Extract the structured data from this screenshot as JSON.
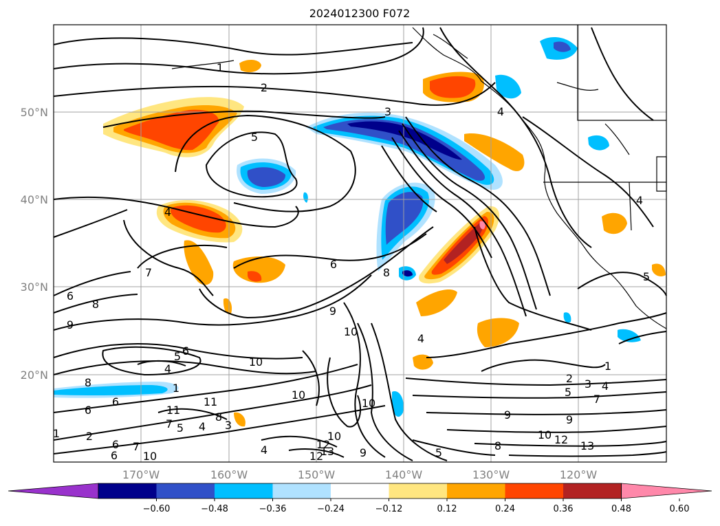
{
  "title": "2024012300 F072",
  "lat_labels": [
    "50°N",
    "40°N",
    "30°N",
    "20°N"
  ],
  "lon_labels": [
    "170°W",
    "160°W",
    "150°W",
    "140°W",
    "130°W",
    "120°W"
  ],
  "colorbar": {
    "ticks": [
      "−0.60",
      "−0.48",
      "−0.36",
      "−0.24",
      "−0.12",
      "0.12",
      "0.24",
      "0.36",
      "0.48",
      "0.60"
    ],
    "colors": [
      "#9932cc",
      "#00008b",
      "#3050c8",
      "#00bfff",
      "#b0e2ff",
      "#ffffff",
      "#ffe680",
      "#ffa500",
      "#ff4500",
      "#b22222",
      "#ff88aa"
    ]
  },
  "contour_labels": [
    "1",
    "2",
    "3",
    "4",
    "5",
    "6",
    "7",
    "8",
    "9",
    "10",
    "11",
    "12",
    "13"
  ],
  "colors": {
    "ocean_bg": "#ffffff",
    "contour_line": "#000000",
    "grid": "#a0a0a0"
  }
}
